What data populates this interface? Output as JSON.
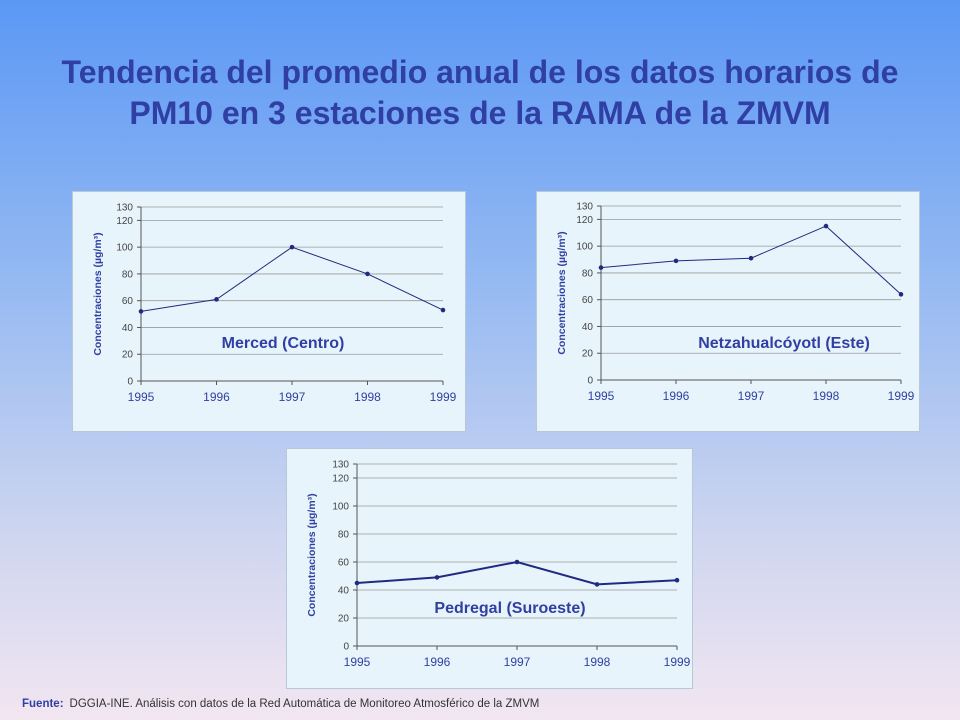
{
  "slide": {
    "title": "Tendencia del promedio anual de los datos horarios de PM10 en 3 estaciones de la RAMA de la ZMVM",
    "footer_label": "Fuente:",
    "footer_text": "DGGIA-INE.  Análisis con datos de la Red Automática de Monitoreo Atmosférico de la ZMVM"
  },
  "colors": {
    "title": "#2f3fa3",
    "series": "#1f2a80",
    "panel_bg": "#e8f4fb",
    "grid": "#9a9a9a"
  },
  "chart_data": [
    {
      "type": "line",
      "title": "Merced (Centro)",
      "ylabel": "Concentraciones (µg/m³)",
      "xlabel": "",
      "x": [
        "1995",
        "1996",
        "1997",
        "1998",
        "1999"
      ],
      "values": [
        52,
        61,
        100,
        80,
        53
      ],
      "ylim": [
        0,
        130
      ],
      "yticks": [
        0,
        20,
        40,
        60,
        80,
        100,
        120,
        130
      ],
      "grid": true
    },
    {
      "type": "line",
      "title": "Netzahualcóyotl (Este)",
      "ylabel": "Concentraciones (µg/m³)",
      "xlabel": "",
      "x": [
        "1995",
        "1996",
        "1997",
        "1998",
        "1999"
      ],
      "values": [
        84,
        89,
        91,
        115,
        64
      ],
      "ylim": [
        0,
        130
      ],
      "yticks": [
        0,
        20,
        40,
        60,
        80,
        100,
        120,
        130
      ],
      "grid": true
    },
    {
      "type": "line",
      "title": "Pedregal (Suroeste)",
      "ylabel": "Concentraciones (µg/m³)",
      "xlabel": "",
      "x": [
        "1995",
        "1996",
        "1997",
        "1998",
        "1999"
      ],
      "values": [
        45,
        49,
        60,
        44,
        47
      ],
      "ylim": [
        0,
        130
      ],
      "yticks": [
        0,
        20,
        40,
        60,
        80,
        100,
        120,
        130
      ],
      "grid": true
    }
  ]
}
